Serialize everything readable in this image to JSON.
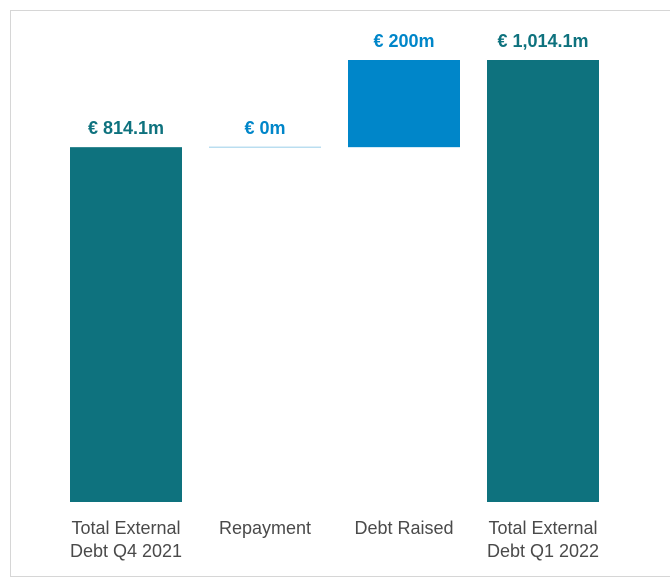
{
  "chart_data": {
    "type": "waterfall",
    "categories": [
      "Total External Debt Q4 2021",
      "Repayment",
      "Debt Raised",
      "Total External Debt Q1 2022"
    ],
    "values": [
      814.1,
      0,
      200,
      1014.1
    ],
    "value_labels": [
      "€ 814.1m",
      "€ 0m",
      "€ 200m",
      "€ 1,014.1m"
    ],
    "measure": [
      "total",
      "relative",
      "relative",
      "total"
    ],
    "total_color": "#0e727e",
    "relative_color": "#0086c9"
  }
}
